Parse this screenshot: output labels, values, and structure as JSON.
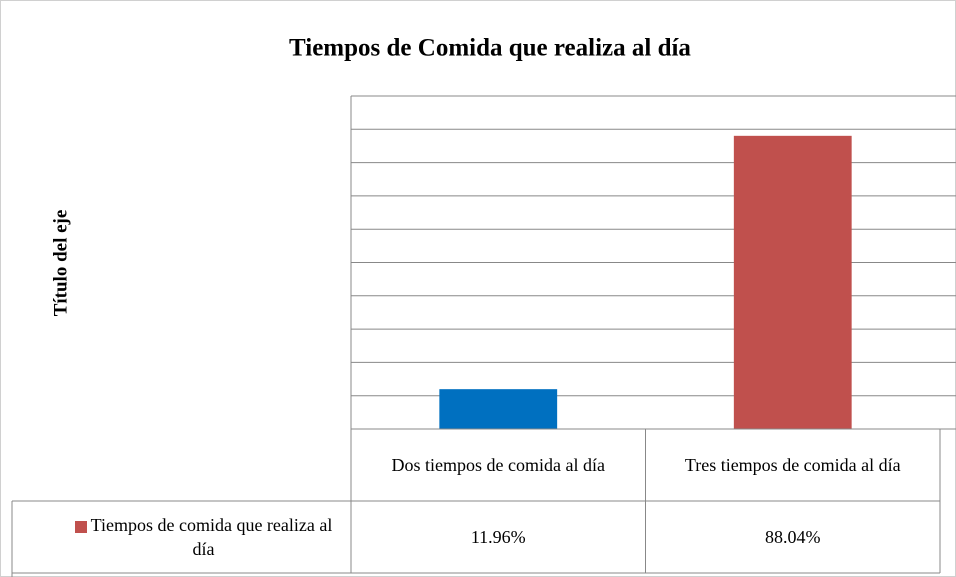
{
  "chart_data": {
    "type": "bar",
    "title": "Tiempos de Comida que realiza al día",
    "y_label": "Título del eje",
    "categories": [
      "Dos tiempos de comida al día",
      "Tres tiempos de comida al día"
    ],
    "series": [
      {
        "name": "Tiempos de comida que realiza al día",
        "color": "#c0504d",
        "colors": [
          "#0070c0",
          "#c0504d"
        ],
        "values": [
          11.96,
          88.04
        ],
        "value_labels": [
          "11.96%",
          "88.04%"
        ]
      }
    ],
    "ylim": [
      0,
      100
    ],
    "yticks": [
      0,
      10,
      20,
      30,
      40,
      50,
      60,
      70,
      80,
      90,
      100
    ],
    "grid": true
  }
}
